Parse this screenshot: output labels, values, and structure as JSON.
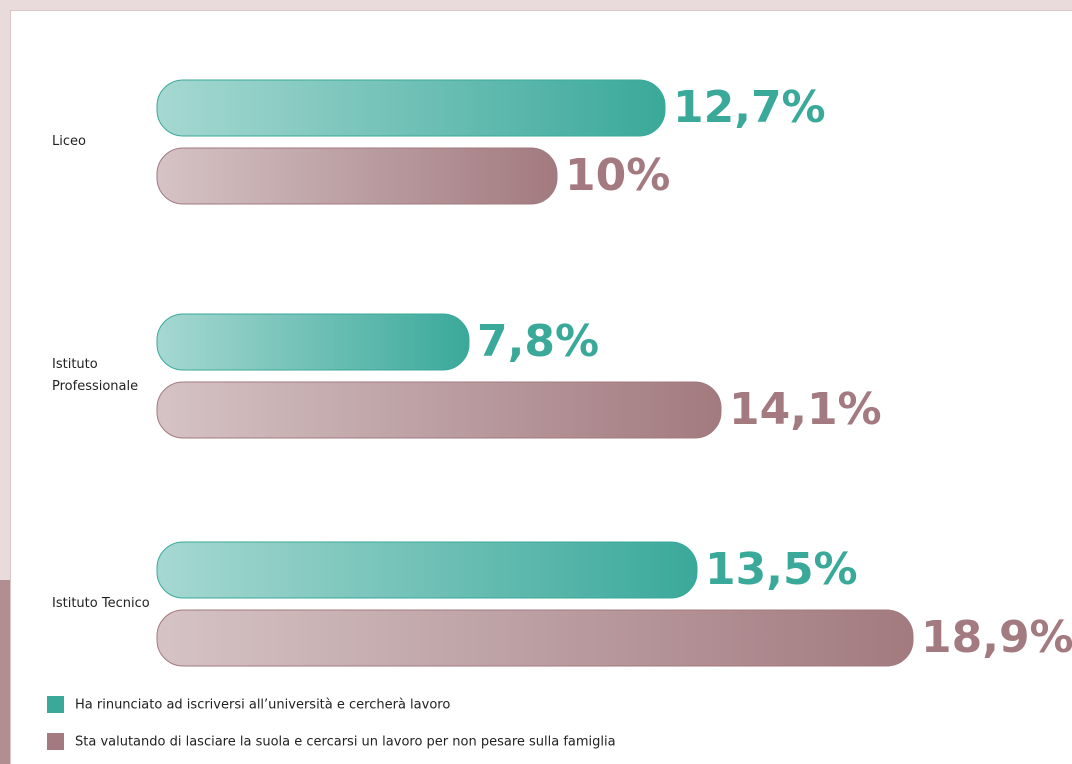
{
  "chart_data": {
    "type": "bar",
    "categories": [
      "Liceo",
      "Istituto Professionale",
      "Istituto Tecnico"
    ],
    "series": [
      {
        "name": "Ha rinunciato ad iscriversi all’università e cercherà lavoro",
        "color": "#3aa99a",
        "values": [
          12.7,
          7.8,
          13.5
        ],
        "value_labels": [
          "12,7%",
          "7,8%",
          "13,5%"
        ]
      },
      {
        "name": "Sta valutando di lasciare la suola e cercarsi un lavoro per non pesare sulla famiglia",
        "color": "#a27a7f",
        "values": [
          10,
          14.1,
          18.9
        ],
        "value_labels": [
          "10%",
          "14,1%",
          "18,9%"
        ]
      }
    ]
  }
}
